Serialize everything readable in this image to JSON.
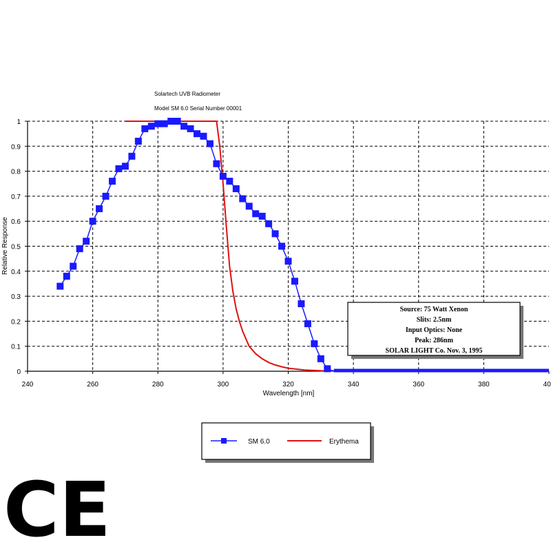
{
  "chart_data": {
    "type": "line",
    "title_lines": [
      "Solartech UVB Radiometer",
      "Model SM 6.0 Serial Number 00001"
    ],
    "xlabel": "Wavelength [nm]",
    "ylabel": "Relative Response",
    "xlim": [
      240,
      400
    ],
    "ylim": [
      0,
      1
    ],
    "x_ticks": [
      "240",
      "260",
      "280",
      "300",
      "320",
      "340",
      "360",
      "380",
      "400"
    ],
    "y_ticks": [
      "0",
      "0.1",
      "0.2",
      "0.3",
      "0.4",
      "0.5",
      "0.6",
      "0.7",
      "0.8",
      "0.9",
      "1"
    ],
    "grid": true,
    "series": [
      {
        "name": "SM 6.0",
        "color": "#1a1aff",
        "marker": "square",
        "x": [
          250,
          252,
          254,
          256,
          258,
          260,
          262,
          264,
          266,
          268,
          270,
          272,
          274,
          276,
          278,
          280,
          282,
          284,
          286,
          288,
          290,
          292,
          294,
          296,
          298,
          300,
          302,
          304,
          306,
          308,
          310,
          312,
          314,
          316,
          318,
          320,
          322,
          324,
          326,
          328,
          330,
          332,
          334,
          336,
          338,
          340,
          342,
          344,
          346,
          348,
          350,
          352,
          354,
          356,
          358,
          360,
          362,
          364,
          366,
          368,
          370,
          372,
          374,
          376,
          378,
          380,
          382,
          384,
          386,
          388,
          390,
          392,
          394,
          396,
          398,
          400
        ],
        "y": [
          0.34,
          0.38,
          0.42,
          0.49,
          0.52,
          0.6,
          0.65,
          0.7,
          0.76,
          0.81,
          0.82,
          0.86,
          0.92,
          0.97,
          0.98,
          0.99,
          0.99,
          1.0,
          1.0,
          0.98,
          0.97,
          0.95,
          0.94,
          0.91,
          0.83,
          0.78,
          0.76,
          0.73,
          0.69,
          0.66,
          0.63,
          0.62,
          0.59,
          0.55,
          0.5,
          0.44,
          0.36,
          0.27,
          0.19,
          0.11,
          0.05,
          0.01,
          0.0,
          0.0,
          0.0,
          0.0,
          0.0,
          0.0,
          0.0,
          0.0,
          0.0,
          0.0,
          0.0,
          0.0,
          0.0,
          0.0,
          0.0,
          0.0,
          0.0,
          0.0,
          0.0,
          0.0,
          0.0,
          0.0,
          0.0,
          0.0,
          0.0,
          0.0,
          0.0,
          0.0,
          0.0,
          0.0,
          0.0,
          0.0,
          0.0,
          0.0
        ]
      },
      {
        "name": "Erythema",
        "color": "#e01010",
        "x": [
          270,
          280,
          290,
          297,
          298,
          299,
          300,
          301,
          302,
          303,
          304,
          305,
          306,
          307,
          308,
          310,
          312,
          314,
          316,
          318,
          320,
          325,
          330,
          340,
          350,
          400
        ],
        "y": [
          1.0,
          1.0,
          1.0,
          1.0,
          1.0,
          0.9,
          0.75,
          0.58,
          0.42,
          0.32,
          0.25,
          0.2,
          0.16,
          0.13,
          0.1,
          0.07,
          0.05,
          0.035,
          0.025,
          0.018,
          0.012,
          0.005,
          0.002,
          0.001,
          0.0,
          0.0
        ]
      }
    ],
    "legend_position": "bottom"
  },
  "info_box": [
    "Source: 75 Watt Xenon",
    "Slits: 2.5nm",
    "Input Optics: None",
    "Peak: 286nm",
    "SOLAR LIGHT Co. Nov. 3, 1995"
  ],
  "ce_mark": "CE"
}
